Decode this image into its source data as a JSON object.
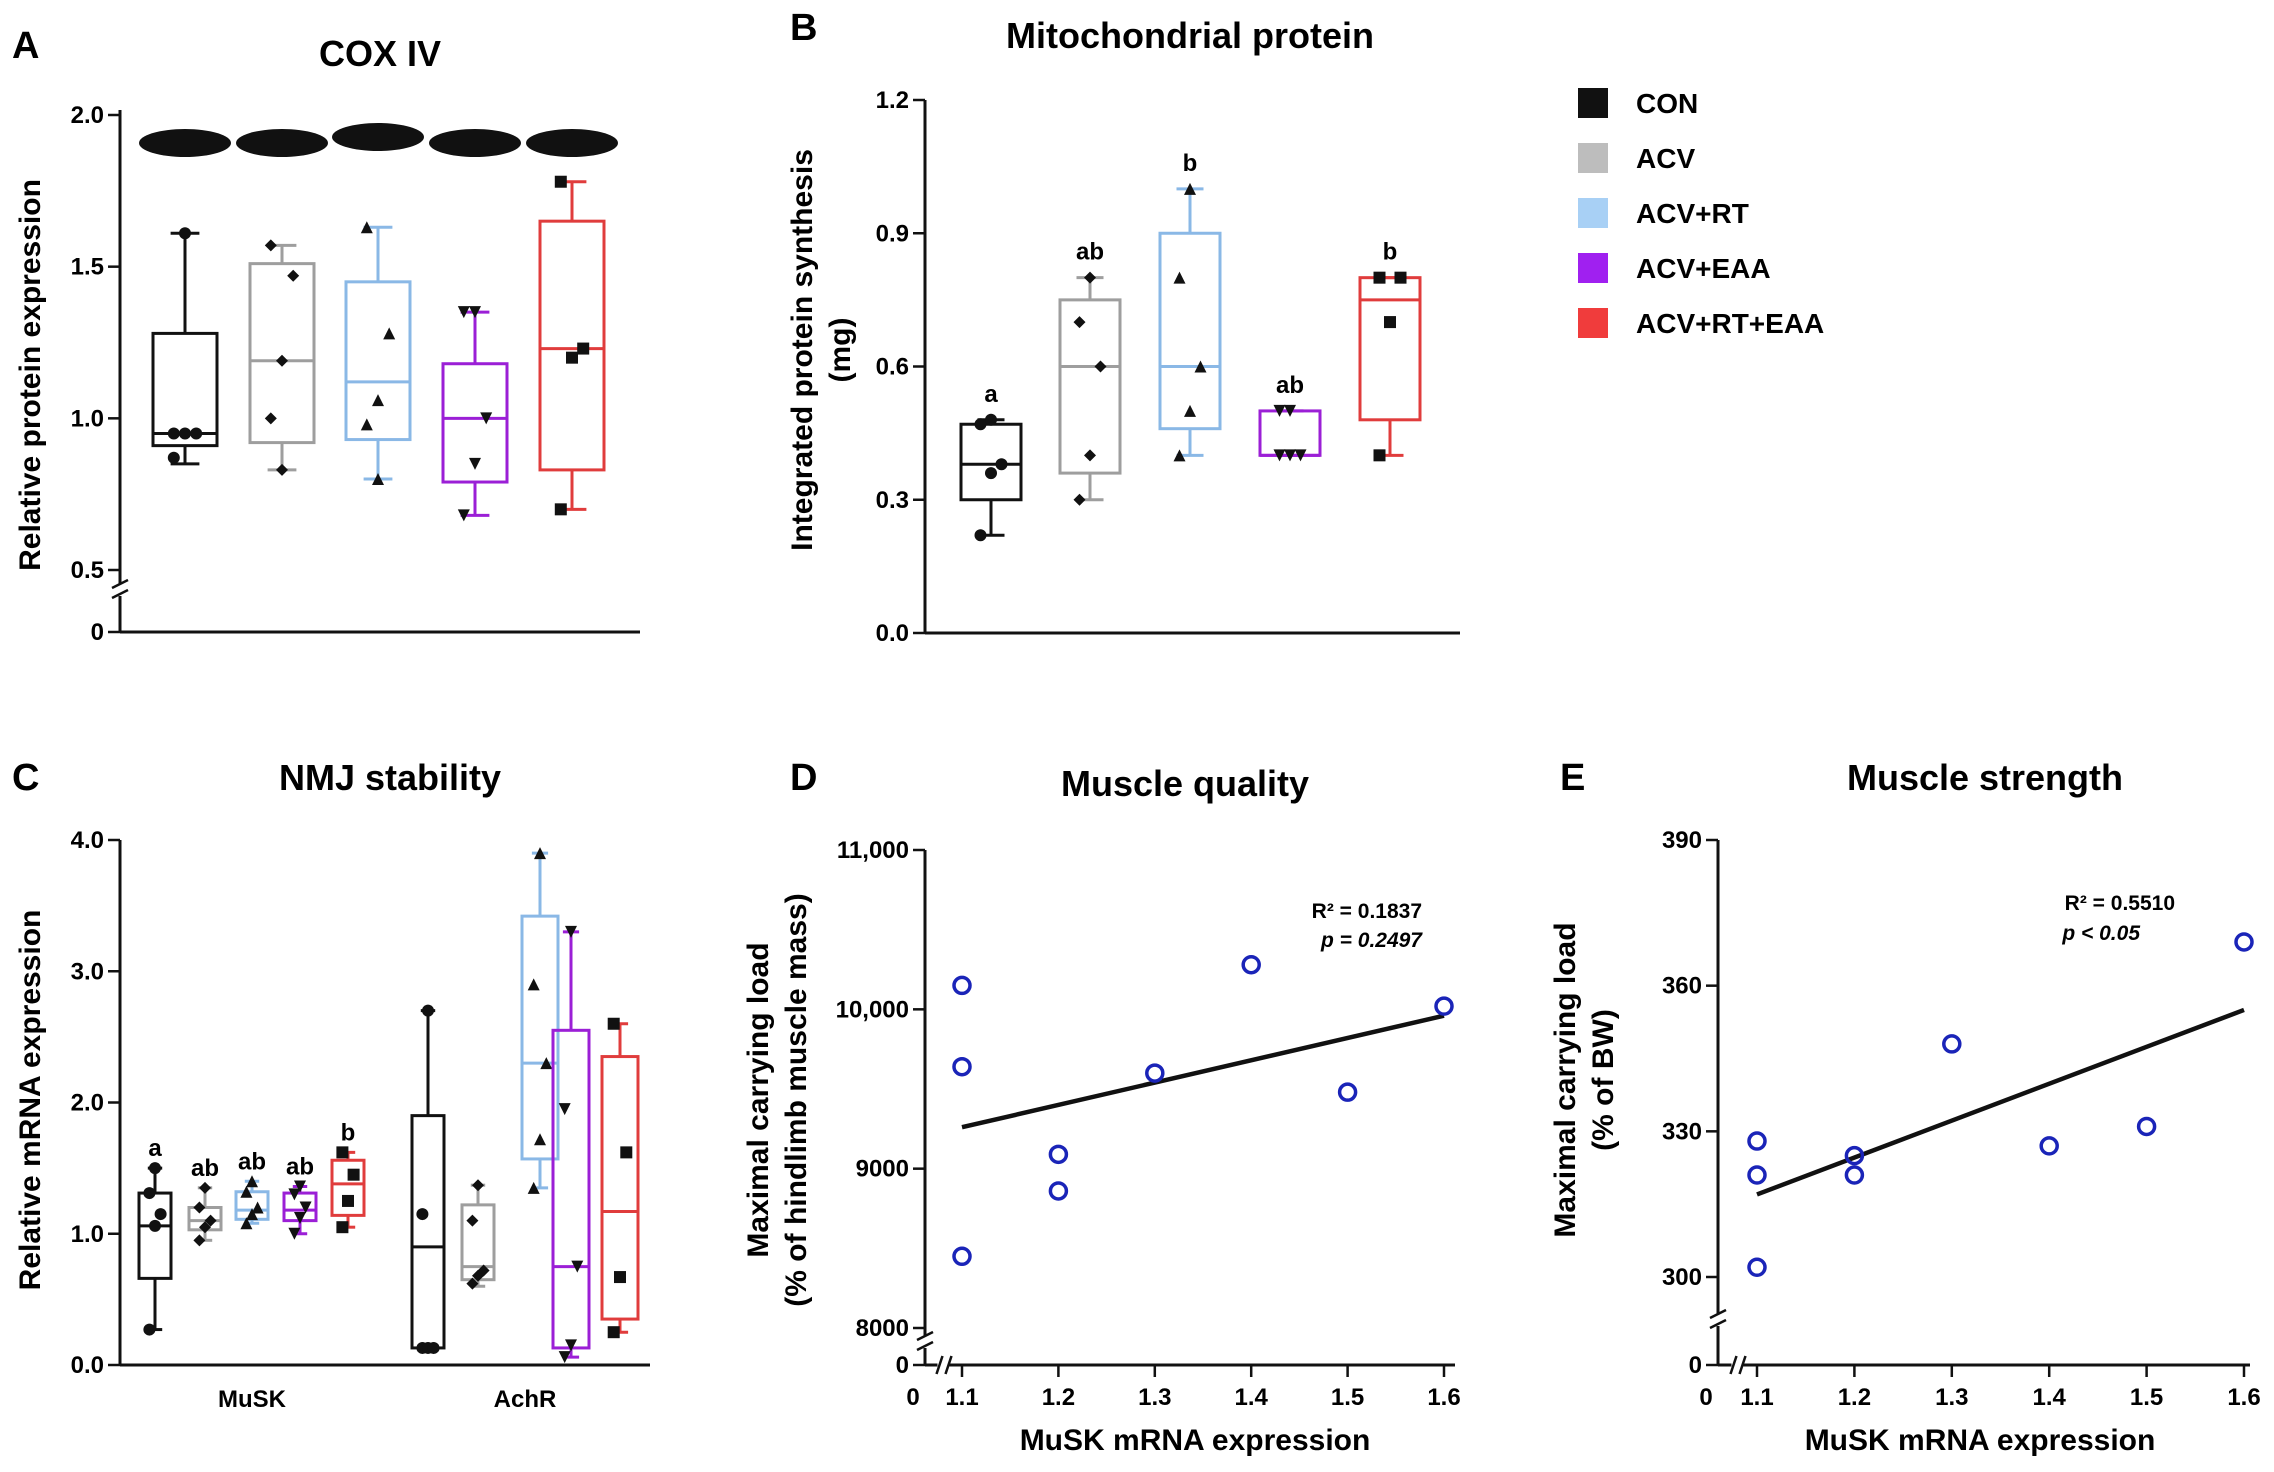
{
  "colors": {
    "CON": "#111111",
    "ACV": "#9e9e9e",
    "ACV+RT": "#8ab8e6",
    "ACV+EAA": "#9b1fd6",
    "ACV+RT+EAA": "#e03c3c",
    "scatter": "#1a24b8"
  },
  "legend": [
    {
      "name": "CON",
      "color": "#111111"
    },
    {
      "name": "ACV",
      "color": "#bdbdbd"
    },
    {
      "name": "ACV+RT",
      "color": "#a8d0f5"
    },
    {
      "name": "ACV+EAA",
      "color": "#a020f0"
    },
    {
      "name": "ACV+RT+EAA",
      "color": "#f03c3c"
    }
  ],
  "chart_data": [
    {
      "panel": "A",
      "type": "box",
      "title": "COX IV",
      "ylabel": "Relative protein expression",
      "ylim": [
        0,
        2.0
      ],
      "axis_break": true,
      "yticks": [
        "0",
        "0.5",
        "1.0",
        "1.5",
        "2.0"
      ],
      "blot_bands": 5,
      "groups": [
        {
          "name": "CON",
          "min": 0.85,
          "q1": 0.91,
          "median": 0.95,
          "q3": 1.28,
          "max": 1.61,
          "points": [
            0.95,
            0.95,
            0.95,
            0.87,
            1.61
          ],
          "marker": "circle"
        },
        {
          "name": "ACV",
          "min": 0.83,
          "q1": 0.92,
          "median": 1.19,
          "q3": 1.51,
          "max": 1.57,
          "points": [
            1.0,
            1.19,
            1.47,
            1.57,
            0.83
          ],
          "marker": "diamond"
        },
        {
          "name": "ACV+RT",
          "min": 0.8,
          "q1": 0.93,
          "median": 1.12,
          "q3": 1.45,
          "max": 1.63,
          "points": [
            0.98,
            1.06,
            1.28,
            1.63,
            0.8
          ],
          "marker": "triangle"
        },
        {
          "name": "ACV+EAA",
          "min": 0.68,
          "q1": 0.79,
          "median": 1.0,
          "q3": 1.18,
          "max": 1.35,
          "points": [
            0.68,
            0.85,
            1.0,
            1.35,
            1.35
          ],
          "marker": "triangle-down"
        },
        {
          "name": "ACV+RT+EAA",
          "min": 0.7,
          "q1": 0.83,
          "median": 1.23,
          "q3": 1.65,
          "max": 1.78,
          "points": [
            0.7,
            1.2,
            1.23,
            1.78
          ],
          "marker": "square"
        }
      ]
    },
    {
      "panel": "B",
      "type": "box",
      "title": "Mitochondrial protein",
      "ylabel": "Integrated protein synthesis (mg)",
      "ylim": [
        0,
        1.2
      ],
      "yticks": [
        "0.0",
        "0.3",
        "0.6",
        "0.9",
        "1.2"
      ],
      "groups": [
        {
          "name": "CON",
          "min": 0.22,
          "q1": 0.3,
          "median": 0.38,
          "q3": 0.47,
          "max": 0.48,
          "points": [
            0.22,
            0.36,
            0.38,
            0.47,
            0.48
          ],
          "marker": "circle",
          "sig": "a"
        },
        {
          "name": "ACV",
          "min": 0.3,
          "q1": 0.36,
          "median": 0.6,
          "q3": 0.75,
          "max": 0.8,
          "points": [
            0.3,
            0.4,
            0.6,
            0.7,
            0.8
          ],
          "marker": "diamond",
          "sig": "ab"
        },
        {
          "name": "ACV+RT",
          "min": 0.4,
          "q1": 0.46,
          "median": 0.6,
          "q3": 0.9,
          "max": 1.0,
          "points": [
            0.4,
            0.5,
            0.6,
            0.8,
            1.0
          ],
          "marker": "triangle",
          "sig": "b"
        },
        {
          "name": "ACV+EAA",
          "min": 0.4,
          "q1": 0.4,
          "median": 0.4,
          "q3": 0.5,
          "max": 0.5,
          "points": [
            0.4,
            0.4,
            0.4,
            0.5,
            0.5
          ],
          "marker": "triangle-down",
          "sig": "ab"
        },
        {
          "name": "ACV+RT+EAA",
          "min": 0.4,
          "q1": 0.48,
          "median": 0.75,
          "q3": 0.8,
          "max": 0.8,
          "points": [
            0.4,
            0.7,
            0.8,
            0.8
          ],
          "marker": "square",
          "sig": "b"
        }
      ]
    },
    {
      "panel": "C",
      "type": "box",
      "title": "NMJ stability",
      "ylabel": "Relative mRNA expression",
      "ylim": [
        0,
        4.0
      ],
      "yticks": [
        "0.0",
        "1.0",
        "2.0",
        "3.0",
        "4.0"
      ],
      "categories": [
        "MuSK",
        "AchR"
      ],
      "sets": [
        {
          "category": "MuSK",
          "groups": [
            {
              "name": "CON",
              "min": 0.27,
              "q1": 0.66,
              "median": 1.06,
              "q3": 1.31,
              "max": 1.5,
              "points": [
                0.27,
                1.06,
                1.15,
                1.31,
                1.5
              ],
              "marker": "circle",
              "sig": "a"
            },
            {
              "name": "ACV",
              "min": 0.95,
              "q1": 1.03,
              "median": 1.1,
              "q3": 1.2,
              "max": 1.35,
              "points": [
                0.95,
                1.05,
                1.1,
                1.2,
                1.35
              ],
              "marker": "diamond",
              "sig": "ab"
            },
            {
              "name": "ACV+RT",
              "min": 1.08,
              "q1": 1.11,
              "median": 1.18,
              "q3": 1.32,
              "max": 1.4,
              "points": [
                1.08,
                1.15,
                1.2,
                1.32,
                1.4
              ],
              "marker": "triangle",
              "sig": "ab"
            },
            {
              "name": "ACV+EAA",
              "min": 1.0,
              "q1": 1.1,
              "median": 1.18,
              "q3": 1.31,
              "max": 1.36,
              "points": [
                1.0,
                1.12,
                1.2,
                1.3,
                1.36
              ],
              "marker": "triangle-down",
              "sig": "ab"
            },
            {
              "name": "ACV+RT+EAA",
              "min": 1.05,
              "q1": 1.14,
              "median": 1.38,
              "q3": 1.56,
              "max": 1.62,
              "points": [
                1.05,
                1.25,
                1.45,
                1.62
              ],
              "marker": "square",
              "sig": "b"
            }
          ]
        },
        {
          "category": "AchR",
          "groups": [
            {
              "name": "CON",
              "min": 0.13,
              "q1": 0.13,
              "median": 0.9,
              "q3": 1.9,
              "max": 2.7,
              "points": [
                0.13,
                0.13,
                0.13,
                1.15,
                2.7
              ],
              "marker": "circle"
            },
            {
              "name": "ACV",
              "min": 0.6,
              "q1": 0.65,
              "median": 0.75,
              "q3": 1.22,
              "max": 1.37,
              "points": [
                0.62,
                0.68,
                0.72,
                1.1,
                1.37
              ],
              "marker": "diamond"
            },
            {
              "name": "ACV+RT",
              "min": 1.35,
              "q1": 1.57,
              "median": 2.3,
              "q3": 3.42,
              "max": 3.9,
              "points": [
                1.35,
                1.72,
                2.3,
                2.9,
                3.9
              ],
              "marker": "triangle"
            },
            {
              "name": "ACV+EAA",
              "min": 0.06,
              "q1": 0.13,
              "median": 0.75,
              "q3": 2.55,
              "max": 3.3,
              "points": [
                0.06,
                0.15,
                0.75,
                1.95,
                3.3
              ],
              "marker": "triangle-down"
            },
            {
              "name": "ACV+RT+EAA",
              "min": 0.25,
              "q1": 0.35,
              "median": 1.17,
              "q3": 2.35,
              "max": 2.6,
              "points": [
                0.25,
                0.67,
                1.62,
                2.6
              ],
              "marker": "square"
            }
          ]
        }
      ]
    },
    {
      "panel": "D",
      "type": "scatter",
      "title": "Muscle quality",
      "xlabel": "MuSK mRNA expression",
      "ylabel": "Maximal carrying load (% of hindlimb muscle mass)",
      "xlim": [
        1.1,
        1.6
      ],
      "ylim": [
        8000,
        11000
      ],
      "axis_break": true,
      "xticks": [
        "0",
        "1.1",
        "1.2",
        "1.3",
        "1.4",
        "1.5",
        "1.6"
      ],
      "yticks": [
        "0",
        "8000",
        "9000",
        "10,000",
        "11,000"
      ],
      "x": [
        1.1,
        1.1,
        1.1,
        1.2,
        1.2,
        1.3,
        1.4,
        1.5,
        1.6
      ],
      "y": [
        10150,
        9640,
        8450,
        9090,
        8860,
        9600,
        10280,
        9480,
        10020
      ],
      "fit": {
        "x": [
          1.1,
          1.6
        ],
        "y": [
          9260,
          9960
        ]
      },
      "r2": "R² = 0.1837",
      "p": "p = 0.2497"
    },
    {
      "panel": "E",
      "type": "scatter",
      "title": "Muscle strength",
      "xlabel": "MuSK mRNA expression",
      "ylabel": "Maximal carrying load (% of BW)",
      "xlim": [
        1.1,
        1.6
      ],
      "ylim": [
        300,
        390
      ],
      "axis_break": true,
      "xticks": [
        "0",
        "1.1",
        "1.2",
        "1.3",
        "1.4",
        "1.5",
        "1.6"
      ],
      "yticks": [
        "0",
        "300",
        "330",
        "360",
        "390"
      ],
      "x": [
        1.1,
        1.1,
        1.1,
        1.2,
        1.2,
        1.3,
        1.4,
        1.5,
        1.6
      ],
      "y": [
        328,
        321,
        302,
        325,
        321,
        348,
        327,
        331,
        369
      ],
      "fit": {
        "x": [
          1.1,
          1.6
        ],
        "y": [
          317,
          355
        ]
      },
      "r2": "R² = 0.5510",
      "p": "p < 0.05"
    }
  ]
}
